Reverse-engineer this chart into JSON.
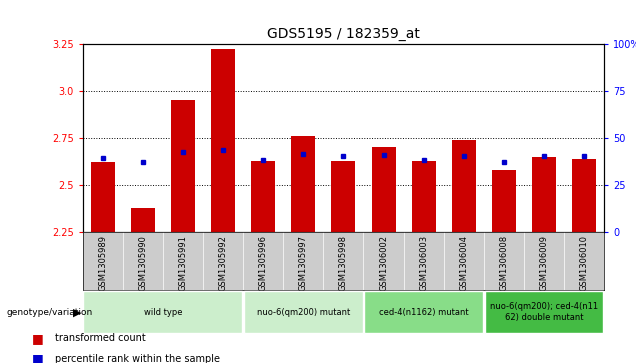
{
  "title": "GDS5195 / 182359_at",
  "samples": [
    "GSM1305989",
    "GSM1305990",
    "GSM1305991",
    "GSM1305992",
    "GSM1305996",
    "GSM1305997",
    "GSM1305998",
    "GSM1306002",
    "GSM1306003",
    "GSM1306004",
    "GSM1306008",
    "GSM1306009",
    "GSM1306010"
  ],
  "red_values": [
    2.62,
    2.38,
    2.95,
    3.22,
    2.63,
    2.76,
    2.63,
    2.7,
    2.63,
    2.74,
    2.58,
    2.65,
    2.64
  ],
  "blue_values": [
    2.645,
    2.625,
    2.675,
    2.685,
    2.635,
    2.665,
    2.655,
    2.66,
    2.635,
    2.655,
    2.625,
    2.655,
    2.655
  ],
  "ymin": 2.25,
  "ymax": 3.25,
  "yticks": [
    2.25,
    2.5,
    2.75,
    3.0,
    3.25
  ],
  "right_yticks": [
    0,
    25,
    50,
    75,
    100
  ],
  "groups": [
    {
      "label": "wild type",
      "start": 0,
      "end": 4,
      "color": "#cceecc"
    },
    {
      "label": "nuo-6(qm200) mutant",
      "start": 4,
      "end": 7,
      "color": "#cceecc"
    },
    {
      "label": "ced-4(n1162) mutant",
      "start": 7,
      "end": 10,
      "color": "#88dd88"
    },
    {
      "label": "nuo-6(qm200); ced-4(n11\n62) double mutant",
      "start": 10,
      "end": 13,
      "color": "#44bb44"
    }
  ],
  "legend_labels": [
    "transformed count",
    "percentile rank within the sample"
  ],
  "legend_colors": [
    "#cc0000",
    "#0000cc"
  ],
  "bar_color": "#cc0000",
  "dot_color": "#0000cc",
  "gray_bg": "#cccccc",
  "title_fontsize": 10,
  "tick_fontsize": 6.5,
  "grid_color": "#000000",
  "grid_style": "dotted",
  "grid_values": [
    2.5,
    2.75,
    3.0
  ]
}
